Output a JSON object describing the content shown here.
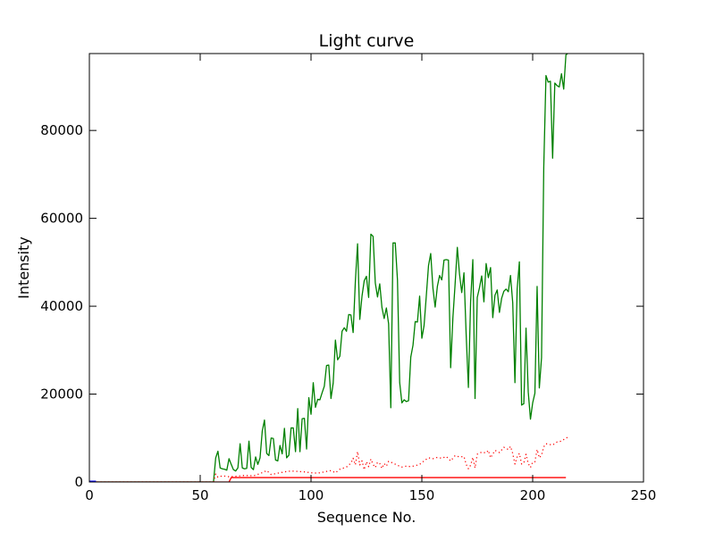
{
  "chart_data": {
    "type": "line",
    "title": "Light curve",
    "xlabel": "Sequence No.",
    "ylabel": "Intensity",
    "xlim": [
      0,
      250
    ],
    "ylim": [
      0,
      97500
    ],
    "xticks": [
      0,
      50,
      100,
      150,
      200,
      250
    ],
    "yticks": [
      0,
      20000,
      40000,
      60000,
      80000
    ],
    "grid": false,
    "series": [
      {
        "style": "solid",
        "color": "#008000",
        "points": [
          [
            0,
            0
          ],
          [
            10,
            0
          ],
          [
            20,
            0
          ],
          [
            30,
            0
          ],
          [
            40,
            0
          ],
          [
            50,
            0
          ],
          [
            56,
            0
          ],
          [
            57,
            5500
          ],
          [
            58,
            7000
          ],
          [
            59,
            3200
          ],
          [
            60,
            3000
          ],
          [
            61,
            2900
          ],
          [
            62,
            2700
          ],
          [
            63,
            5300
          ],
          [
            64,
            4000
          ],
          [
            65,
            2800
          ],
          [
            66,
            2500
          ],
          [
            67,
            3200
          ],
          [
            68,
            8700
          ],
          [
            69,
            3200
          ],
          [
            70,
            3000
          ],
          [
            71,
            3100
          ],
          [
            72,
            9300
          ],
          [
            73,
            3300
          ],
          [
            74,
            2800
          ],
          [
            75,
            5700
          ],
          [
            76,
            4000
          ],
          [
            77,
            5500
          ],
          [
            78,
            11600
          ],
          [
            79,
            14100
          ],
          [
            80,
            6500
          ],
          [
            81,
            6000
          ],
          [
            82,
            10000
          ],
          [
            83,
            9900
          ],
          [
            84,
            5000
          ],
          [
            85,
            4800
          ],
          [
            86,
            8300
          ],
          [
            87,
            6400
          ],
          [
            88,
            12200
          ],
          [
            89,
            5500
          ],
          [
            90,
            6100
          ],
          [
            91,
            12300
          ],
          [
            92,
            12300
          ],
          [
            93,
            6900
          ],
          [
            94,
            16700
          ],
          [
            95,
            6900
          ],
          [
            96,
            14400
          ],
          [
            97,
            14500
          ],
          [
            98,
            7500
          ],
          [
            99,
            19200
          ],
          [
            100,
            15400
          ],
          [
            101,
            22600
          ],
          [
            102,
            17000
          ],
          [
            103,
            18800
          ],
          [
            104,
            18700
          ],
          [
            105,
            20300
          ],
          [
            106,
            21800
          ],
          [
            107,
            26500
          ],
          [
            108,
            26600
          ],
          [
            109,
            19000
          ],
          [
            110,
            22500
          ],
          [
            111,
            32300
          ],
          [
            112,
            27800
          ],
          [
            113,
            28600
          ],
          [
            114,
            34300
          ],
          [
            115,
            35100
          ],
          [
            116,
            34300
          ],
          [
            117,
            38100
          ],
          [
            118,
            38000
          ],
          [
            119,
            34000
          ],
          [
            120,
            45600
          ],
          [
            121,
            54200
          ],
          [
            122,
            37000
          ],
          [
            123,
            42300
          ],
          [
            124,
            45800
          ],
          [
            125,
            46800
          ],
          [
            126,
            42000
          ],
          [
            127,
            56400
          ],
          [
            128,
            55900
          ],
          [
            129,
            45300
          ],
          [
            130,
            42100
          ],
          [
            131,
            45100
          ],
          [
            132,
            39700
          ],
          [
            133,
            37200
          ],
          [
            134,
            39600
          ],
          [
            135,
            36000
          ],
          [
            136,
            16900
          ],
          [
            137,
            54400
          ],
          [
            138,
            54400
          ],
          [
            139,
            46000
          ],
          [
            140,
            22600
          ],
          [
            141,
            18000
          ],
          [
            142,
            18700
          ],
          [
            143,
            18300
          ],
          [
            144,
            18500
          ],
          [
            145,
            28400
          ],
          [
            146,
            31100
          ],
          [
            147,
            36500
          ],
          [
            148,
            36400
          ],
          [
            149,
            42300
          ],
          [
            150,
            32700
          ],
          [
            151,
            35600
          ],
          [
            152,
            42300
          ],
          [
            153,
            49200
          ],
          [
            154,
            52000
          ],
          [
            155,
            44100
          ],
          [
            156,
            39800
          ],
          [
            157,
            44500
          ],
          [
            158,
            47000
          ],
          [
            159,
            46000
          ],
          [
            160,
            50500
          ],
          [
            161,
            50600
          ],
          [
            162,
            50500
          ],
          [
            163,
            26000
          ],
          [
            164,
            37300
          ],
          [
            165,
            45000
          ],
          [
            166,
            53400
          ],
          [
            167,
            47300
          ],
          [
            168,
            43100
          ],
          [
            169,
            47600
          ],
          [
            170,
            33500
          ],
          [
            171,
            21500
          ],
          [
            172,
            41000
          ],
          [
            173,
            50600
          ],
          [
            174,
            19000
          ],
          [
            175,
            42000
          ],
          [
            176,
            44200
          ],
          [
            177,
            46900
          ],
          [
            178,
            41000
          ],
          [
            179,
            49700
          ],
          [
            180,
            46500
          ],
          [
            181,
            48800
          ],
          [
            182,
            37400
          ],
          [
            183,
            42500
          ],
          [
            184,
            43700
          ],
          [
            185,
            38600
          ],
          [
            186,
            41800
          ],
          [
            187,
            43400
          ],
          [
            188,
            43900
          ],
          [
            189,
            43300
          ],
          [
            190,
            47000
          ],
          [
            191,
            40800
          ],
          [
            192,
            22600
          ],
          [
            193,
            43900
          ],
          [
            194,
            50100
          ],
          [
            195,
            17500
          ],
          [
            196,
            17800
          ],
          [
            197,
            35000
          ],
          [
            198,
            20500
          ],
          [
            199,
            14300
          ],
          [
            200,
            18000
          ],
          [
            201,
            20200
          ],
          [
            202,
            44500
          ],
          [
            203,
            21400
          ],
          [
            204,
            28300
          ],
          [
            205,
            71600
          ],
          [
            206,
            92500
          ],
          [
            207,
            91000
          ],
          [
            208,
            91200
          ],
          [
            209,
            73700
          ],
          [
            210,
            90800
          ],
          [
            211,
            90200
          ],
          [
            212,
            89900
          ],
          [
            213,
            92900
          ],
          [
            214,
            89400
          ],
          [
            215,
            97200
          ],
          [
            216,
            97600
          ]
        ]
      },
      {
        "style": "dotted",
        "color": "#ff0000",
        "points": [
          [
            0,
            0
          ],
          [
            50,
            0
          ],
          [
            56,
            0
          ],
          [
            57,
            1800
          ],
          [
            58,
            1100
          ],
          [
            60,
            1400
          ],
          [
            63,
            1200
          ],
          [
            66,
            1300
          ],
          [
            70,
            1500
          ],
          [
            74,
            1400
          ],
          [
            77,
            1900
          ],
          [
            80,
            2600
          ],
          [
            82,
            1700
          ],
          [
            85,
            2000
          ],
          [
            88,
            2300
          ],
          [
            91,
            2500
          ],
          [
            94,
            2400
          ],
          [
            97,
            2300
          ],
          [
            100,
            2100
          ],
          [
            103,
            2000
          ],
          [
            106,
            2300
          ],
          [
            109,
            2600
          ],
          [
            111,
            2100
          ],
          [
            113,
            2900
          ],
          [
            116,
            3400
          ],
          [
            118,
            4300
          ],
          [
            119,
            5400
          ],
          [
            120,
            3900
          ],
          [
            121,
            6900
          ],
          [
            122,
            3900
          ],
          [
            123,
            4800
          ],
          [
            124,
            2800
          ],
          [
            125,
            4600
          ],
          [
            126,
            3500
          ],
          [
            127,
            5200
          ],
          [
            128,
            4000
          ],
          [
            129,
            3300
          ],
          [
            130,
            4500
          ],
          [
            131,
            4200
          ],
          [
            132,
            3100
          ],
          [
            133,
            4200
          ],
          [
            134,
            3600
          ],
          [
            135,
            4700
          ],
          [
            137,
            4300
          ],
          [
            139,
            3800
          ],
          [
            141,
            3400
          ],
          [
            143,
            3600
          ],
          [
            145,
            3500
          ],
          [
            147,
            3700
          ],
          [
            149,
            4000
          ],
          [
            151,
            4800
          ],
          [
            153,
            5500
          ],
          [
            155,
            5300
          ],
          [
            157,
            5600
          ],
          [
            159,
            5400
          ],
          [
            161,
            5800
          ],
          [
            163,
            4800
          ],
          [
            165,
            6000
          ],
          [
            167,
            5700
          ],
          [
            169,
            5800
          ],
          [
            170,
            4000
          ],
          [
            171,
            3000
          ],
          [
            172,
            3800
          ],
          [
            173,
            5600
          ],
          [
            174,
            3200
          ],
          [
            175,
            6300
          ],
          [
            177,
            6800
          ],
          [
            179,
            6600
          ],
          [
            180,
            7200
          ],
          [
            181,
            5500
          ],
          [
            183,
            7200
          ],
          [
            185,
            6700
          ],
          [
            187,
            7900
          ],
          [
            189,
            7400
          ],
          [
            190,
            8100
          ],
          [
            191,
            6500
          ],
          [
            192,
            4100
          ],
          [
            193,
            5700
          ],
          [
            194,
            6500
          ],
          [
            195,
            4100
          ],
          [
            196,
            4300
          ],
          [
            197,
            6300
          ],
          [
            198,
            4200
          ],
          [
            199,
            3300
          ],
          [
            200,
            4500
          ],
          [
            201,
            4600
          ],
          [
            202,
            7400
          ],
          [
            203,
            5500
          ],
          [
            204,
            6100
          ],
          [
            205,
            8000
          ],
          [
            206,
            8700
          ],
          [
            207,
            8600
          ],
          [
            209,
            8400
          ],
          [
            211,
            9100
          ],
          [
            213,
            9300
          ],
          [
            215,
            10000
          ],
          [
            216,
            10200
          ]
        ]
      },
      {
        "style": "solid",
        "color": "#ff0000",
        "points": [
          [
            0,
            0
          ],
          [
            60,
            0
          ],
          [
            63,
            0
          ],
          [
            64,
            1000
          ],
          [
            100,
            1000
          ],
          [
            150,
            1000
          ],
          [
            200,
            1000
          ],
          [
            215,
            1000
          ]
        ]
      },
      {
        "style": "solid",
        "color": "#0000ff",
        "points": [
          [
            0,
            0
          ],
          [
            2,
            0
          ],
          [
            3,
            0
          ]
        ]
      }
    ]
  }
}
